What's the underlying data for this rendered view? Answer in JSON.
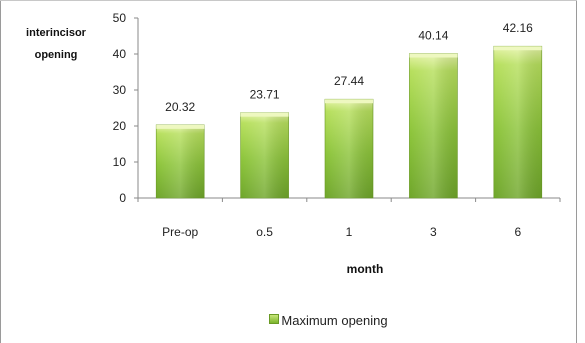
{
  "chart_data": {
    "type": "bar",
    "categories": [
      "Pre-op",
      "o.5",
      "1",
      "3",
      "6"
    ],
    "series": [
      {
        "name": "Maximum opening",
        "values": [
          20.32,
          23.71,
          27.44,
          40.14,
          42.16
        ]
      }
    ],
    "data_labels": [
      "20.32",
      "23.71",
      "27.44",
      "40.14",
      "42.16"
    ],
    "ylabel": "interincisor\nopening",
    "xlabel": "month",
    "ylim": [
      0,
      50
    ],
    "yticks": [
      "0",
      "10",
      "20",
      "30",
      "40",
      "50"
    ],
    "grid": false,
    "legend": "bottom",
    "colors": {
      "bar_top": "#e6f4a8",
      "bar_mid": "#9fd24a",
      "bar_bottom": "#6fa62a",
      "axis": "#888888"
    }
  }
}
